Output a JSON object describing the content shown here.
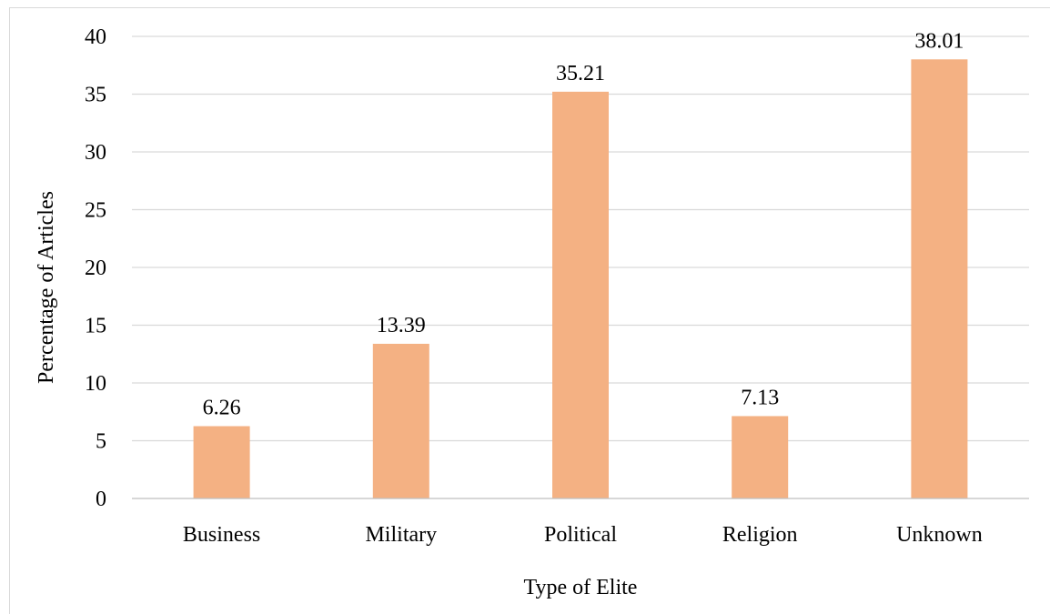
{
  "chart_data": {
    "type": "bar",
    "title": "",
    "xlabel": "Type of Elite",
    "ylabel": "Percentage of Articles",
    "categories": [
      "Business",
      "Military",
      "Political",
      "Religion",
      "Unknown"
    ],
    "values": [
      6.26,
      13.39,
      35.21,
      7.13,
      38.01
    ],
    "data_labels": [
      "6.26",
      "13.39",
      "35.21",
      "7.13",
      "38.01"
    ],
    "yticks": [
      "0",
      "5",
      "10",
      "15",
      "20",
      "25",
      "30",
      "35",
      "40"
    ],
    "ytick_values": [
      0,
      5,
      10,
      15,
      20,
      25,
      30,
      35,
      40
    ],
    "ylim": [
      0,
      40
    ],
    "grid": true,
    "legend": "none",
    "bar_color": "#f4b183"
  }
}
